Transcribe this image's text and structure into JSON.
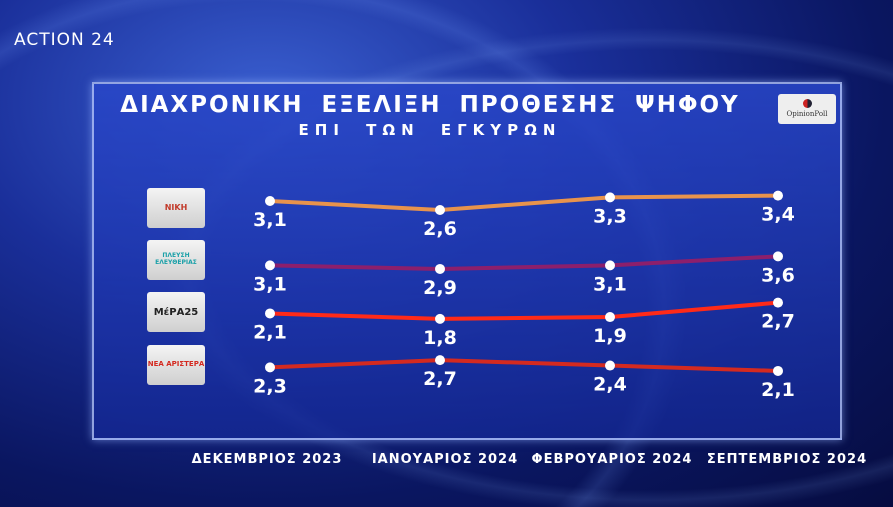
{
  "brand": "ACTION 24",
  "source_logo": "OpinionPoll",
  "chart_data": {
    "type": "line",
    "title": "ΔΙΑΧΡΟΝΙΚΗ ΕΞΕΛΙΞΗ ΠΡΟΘΕΣΗΣ ΨΗΦΟΥ",
    "subtitle": "ΕΠΙ ΤΩΝ ΕΓΚΥΡΩΝ",
    "categories": [
      "ΔΕΚΕΜΒΡΙΟΣ 2023",
      "ΙΑΝΟΥΑΡΙΟΣ 2024",
      "ΦΕΒΡΟΥΑΡΙΟΣ 2024",
      "ΣΕΠΤΕΜΒΡΙΟΣ 2024"
    ],
    "series": [
      {
        "name": "ΝΙΚΗ",
        "color": "#e8934c",
        "values": [
          3.1,
          2.6,
          3.3,
          3.4
        ],
        "labels": [
          "3,1",
          "2,6",
          "3,3",
          "3,4"
        ]
      },
      {
        "name": "ΠΛΕΥΣΗ ΕΛΕΥΘΕΡΙΑΣ",
        "color": "#8c1f6c",
        "values": [
          3.1,
          2.9,
          3.1,
          3.6
        ],
        "labels": [
          "3,1",
          "2,9",
          "3,1",
          "3,6"
        ]
      },
      {
        "name": "ΜέΡΑ25",
        "color": "#ff2a18",
        "values": [
          2.1,
          1.8,
          1.9,
          2.7
        ],
        "labels": [
          "2,1",
          "1,8",
          "1,9",
          "2,7"
        ]
      },
      {
        "name": "ΝΕΑ ΑΡΙΣΤΕΡΑ",
        "color": "#d42a20",
        "values": [
          2.3,
          2.7,
          2.4,
          2.1
        ],
        "labels": [
          "2,3",
          "2,7",
          "2,4",
          "2,1"
        ]
      }
    ]
  }
}
